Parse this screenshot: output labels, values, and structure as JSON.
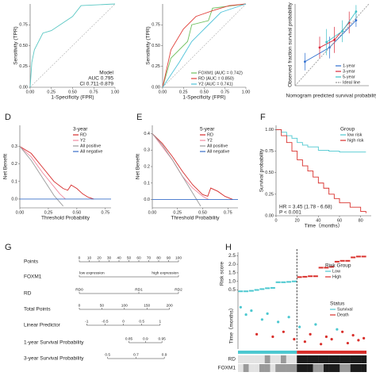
{
  "chart_data": [
    {
      "type": "line",
      "xlabel": "1-Specificity (FPR)",
      "ylabel": "Sensitivity (TPR)",
      "xlim": [
        0,
        1
      ],
      "ylim": [
        0,
        1
      ],
      "xticks": [
        {
          "value": 0,
          "label": "0.00"
        },
        0.25,
        {
          "value": 0.5,
          "label": "0.50"
        },
        0.75,
        {
          "value": 1,
          "label": "1.00"
        }
      ],
      "yticks": [
        {
          "value": 0,
          "label": "0.00"
        },
        0.25,
        {
          "value": 0.5,
          "label": "0.50"
        },
        0.75
      ],
      "diagonal": true,
      "series": [
        {
          "color": "#5cc8c4",
          "x": [
            0,
            0.02,
            0.05,
            0.15,
            0.25,
            0.5,
            0.6,
            1
          ],
          "values": [
            0,
            0.3,
            0.45,
            0.65,
            0.68,
            0.85,
            0.98,
            1
          ]
        }
      ],
      "annotations": [
        "Model",
        "AUC 0.795",
        "CI 0.711-0.879"
      ],
      "annotation_corner": "lower-right"
    },
    {
      "type": "line",
      "xlabel": "1-Specificity (FPR)",
      "ylabel": "Sensitivity (TPR)",
      "xlim": [
        0,
        1
      ],
      "ylim": [
        0,
        1
      ],
      "xticks": [
        {
          "value": 0,
          "label": "0.00"
        },
        0.25,
        {
          "value": 0.5,
          "label": "0.50"
        },
        0.75,
        {
          "value": 1,
          "label": "1.00"
        }
      ],
      "yticks": [
        {
          "value": 0,
          "label": "0.00"
        },
        0.25,
        {
          "value": 0.5,
          "label": "0.50"
        },
        0.75
      ],
      "diagonal": true,
      "legend": "lower-right",
      "series": [
        {
          "name": "FOXM1 (AUC = 0.742)",
          "color": "#6fbf5e",
          "x": [
            0,
            0.1,
            0.3,
            0.35,
            0.55,
            0.6,
            1
          ],
          "values": [
            0,
            0.35,
            0.55,
            0.75,
            0.8,
            0.95,
            1
          ]
        },
        {
          "name": "RD (AUC = 0.850)",
          "color": "#e0403a",
          "x": [
            0,
            0.1,
            0.25,
            0.4,
            0.6,
            0.8,
            1
          ],
          "values": [
            0,
            0.45,
            0.7,
            0.85,
            0.92,
            0.98,
            1
          ]
        },
        {
          "name": "Y2 (AUC = 0.741)",
          "color": "#4fc3d9",
          "x": [
            0,
            0.2,
            0.35,
            0.5,
            0.7,
            1
          ],
          "values": [
            0,
            0.3,
            0.55,
            0.7,
            0.9,
            1
          ]
        }
      ]
    },
    {
      "type": "scatter",
      "xlabel": "Nomogram predicted survival probability",
      "ylabel": "Observed fraction survival probability",
      "xlim": [
        0.2,
        0.95
      ],
      "ylim": [
        0.2,
        0.95
      ],
      "legend": "lower-right",
      "series": [
        {
          "name": "1-year",
          "color": "#2f6fd0",
          "x": [
            0.3,
            0.55,
            0.82
          ],
          "values": [
            0.42,
            0.55,
            0.8
          ],
          "errors": [
            0.08,
            0.1,
            0.06
          ]
        },
        {
          "name": "3-year",
          "color": "#d8283a",
          "x": [
            0.45,
            0.6,
            0.75
          ],
          "values": [
            0.55,
            0.62,
            0.78
          ],
          "errors": [
            0.1,
            0.12,
            0.1
          ]
        },
        {
          "name": "5-year",
          "color": "#3cc0c8",
          "x": [
            0.52,
            0.68,
            0.82
          ],
          "values": [
            0.6,
            0.7,
            0.88
          ],
          "errors": [
            0.12,
            0.1,
            0.06
          ]
        },
        {
          "name": "Ideal line",
          "color": "#999999",
          "style": "dashed",
          "x": [
            0.2,
            0.95
          ],
          "values": [
            0.2,
            0.95
          ]
        }
      ]
    },
    {
      "type": "line",
      "label": "D",
      "xlabel": "Threshold Probability",
      "ylabel": "Net Benefit",
      "xlim": [
        0,
        0.8
      ],
      "ylim": [
        -0.05,
        0.42
      ],
      "xticks": [
        {
          "value": 0,
          "label": "0.00"
        },
        0.25,
        {
          "value": 0.5,
          "label": "0.50"
        },
        0.75
      ],
      "yticks": [
        {
          "value": 0,
          "label": "0.0"
        },
        0.1,
        0.2,
        0.3
      ],
      "legend": "upper-right",
      "legend_title": "3-year",
      "series": [
        {
          "name": "RD",
          "color": "#d62b2b",
          "x": [
            0,
            0.05,
            0.1,
            0.2,
            0.3,
            0.38,
            0.42,
            0.45,
            0.5,
            0.55,
            0.6,
            0.65
          ],
          "values": [
            0.3,
            0.28,
            0.26,
            0.18,
            0.1,
            0.06,
            0.05,
            0.08,
            0.06,
            0.03,
            0.01,
            0
          ]
        },
        {
          "name": "Y2",
          "color": "#f08aa0",
          "x": [
            0,
            0.05,
            0.1,
            0.2,
            0.3,
            0.35,
            0.4
          ],
          "values": [
            0.3,
            0.27,
            0.24,
            0.15,
            0.07,
            0.03,
            0
          ]
        },
        {
          "name": "All positive",
          "color": "#9a9a9a",
          "x": [
            0,
            0.1,
            0.2,
            0.3,
            0.38
          ],
          "values": [
            0.3,
            0.22,
            0.12,
            0.02,
            -0.04
          ]
        },
        {
          "name": "All negative",
          "color": "#3a6fc9",
          "x": [
            0,
            0.8
          ],
          "values": [
            0,
            0
          ]
        }
      ]
    },
    {
      "type": "line",
      "label": "E",
      "xlabel": "Threshold Probability",
      "ylabel": "Net Benefit",
      "xlim": [
        0,
        0.85
      ],
      "ylim": [
        -0.05,
        0.45
      ],
      "xticks": [
        {
          "value": 0,
          "label": "0.00"
        },
        0.25,
        {
          "value": 0.5,
          "label": "0.50"
        },
        0.75
      ],
      "yticks": [
        {
          "value": 0,
          "label": "0.0"
        },
        0.1,
        0.2,
        0.3,
        0.4
      ],
      "legend": "upper-right",
      "legend_title": "5-year",
      "series": [
        {
          "name": "RD",
          "color": "#d62b2b",
          "x": [
            0,
            0.05,
            0.1,
            0.2,
            0.3,
            0.4,
            0.5,
            0.55,
            0.58,
            0.65,
            0.72,
            0.8
          ],
          "values": [
            0.4,
            0.37,
            0.34,
            0.26,
            0.17,
            0.09,
            0.03,
            0.02,
            0.07,
            0.05,
            0.02,
            0
          ]
        },
        {
          "name": "Y2",
          "color": "#f08aa0",
          "x": [
            0,
            0.05,
            0.1,
            0.2,
            0.3,
            0.4,
            0.5,
            0.56
          ],
          "values": [
            0.4,
            0.36,
            0.32,
            0.24,
            0.14,
            0.07,
            0.02,
            0
          ]
        },
        {
          "name": "All positive",
          "color": "#9a9a9a",
          "x": [
            0,
            0.1,
            0.2,
            0.3,
            0.4,
            0.48
          ],
          "values": [
            0.4,
            0.33,
            0.24,
            0.14,
            0.04,
            -0.04
          ]
        },
        {
          "name": "All negative",
          "color": "#3a6fc9",
          "x": [
            0,
            0.85
          ],
          "values": [
            0,
            0
          ]
        }
      ]
    },
    {
      "type": "line",
      "label": "F",
      "step": true,
      "xlabel": "Time（months）",
      "ylabel": "Survival probability",
      "xlim": [
        0,
        90
      ],
      "ylim": [
        0,
        1.05
      ],
      "xticks": [
        0,
        20,
        40,
        60,
        80
      ],
      "yticks": [
        {
          "value": 0,
          "label": "0.00"
        },
        0.25,
        {
          "value": 0.5,
          "label": "0.50"
        },
        0.75,
        {
          "value": 1,
          "label": "1.00"
        }
      ],
      "legend": "upper-right",
      "legend_title": "Group",
      "series": [
        {
          "name": "low risk",
          "color": "#4cc8d0",
          "x": [
            0,
            5,
            10,
            15,
            20,
            25,
            30,
            40,
            50,
            60,
            70,
            85
          ],
          "values": [
            1,
            0.97,
            0.93,
            0.9,
            0.85,
            0.82,
            0.8,
            0.76,
            0.75,
            0.74,
            0.74,
            0.74
          ]
        },
        {
          "name": "high risk",
          "color": "#d9302c",
          "x": [
            0,
            5,
            10,
            15,
            20,
            25,
            30,
            35,
            40,
            45,
            50,
            55,
            60,
            70,
            80,
            85
          ],
          "values": [
            1,
            0.93,
            0.85,
            0.75,
            0.65,
            0.58,
            0.52,
            0.45,
            0.38,
            0.32,
            0.25,
            0.2,
            0.15,
            0.1,
            0.05,
            0.03
          ]
        }
      ],
      "annotations": [
        "HR = 3.45 (1.78 - 6.68)",
        "P < 0.001"
      ],
      "annotation_corner": "lower-left"
    },
    {
      "type": "nomogram",
      "label": "G",
      "rows": [
        {
          "name": "Points",
          "xlim": [
            0,
            100
          ],
          "ticks": [
            0,
            10,
            20,
            30,
            40,
            50,
            60,
            70,
            80,
            90,
            100
          ]
        },
        {
          "name": "FOXM1",
          "xlim": [
            0,
            100
          ],
          "ticks": [
            {
              "value": 0,
              "label": "low expression"
            },
            {
              "value": 100,
              "label": "high expression"
            }
          ]
        },
        {
          "name": "RD",
          "xlim": [
            0,
            100
          ],
          "ticks": [
            {
              "value": 0,
              "label": "RD0"
            },
            {
              "value": 60,
              "label": "RD1"
            },
            {
              "value": 100,
              "label": "RD2"
            }
          ]
        },
        {
          "name": "Total Points",
          "xlim": [
            0,
            220
          ],
          "ticks": [
            0,
            50,
            100,
            150,
            200
          ]
        },
        {
          "name": "Linear Predictor",
          "xlim": [
            -1.2,
            1.5
          ],
          "ticks": [
            -1,
            -0.5,
            0,
            0.5,
            1
          ]
        },
        {
          "name": "1-year Survival Probability",
          "xlim": [
            0.7,
            1
          ],
          "ticks": [
            0.85,
            0.9,
            0.95
          ]
        },
        {
          "name": "3-year Survival Probability",
          "xlim": [
            0.3,
            1
          ],
          "ticks": [
            0.5,
            0.7,
            0.9
          ]
        }
      ]
    },
    {
      "type": "risk",
      "label": "H",
      "xlim": [
        0.5,
        24.5
      ],
      "cutoff": 11.5,
      "ylabel": "Risk score",
      "ylim": [
        0.2,
        2.7
      ],
      "yticks": [
        0.5,
        {
          "value": 1,
          "label": "1.0"
        },
        1.5,
        {
          "value": 2,
          "label": "2.0"
        },
        2.5
      ],
      "legend_title": "Risk Group",
      "series": [
        {
          "name": "Low",
          "color": "#4cc8d0",
          "x": [
            1,
            2,
            3,
            4,
            5,
            6,
            7,
            8,
            9,
            10,
            11
          ],
          "values": [
            0.42,
            0.42,
            0.45,
            0.5,
            0.55,
            0.6,
            0.62,
            0.95,
            0.95,
            0.97,
            1
          ]
        },
        {
          "name": "High",
          "color": "#d9302c",
          "x": [
            12,
            13,
            14,
            15,
            16,
            17,
            18,
            19,
            20,
            21,
            22,
            23,
            24
          ],
          "values": [
            1.25,
            1.27,
            1.3,
            1.3,
            1.8,
            1.8,
            1.85,
            2.15,
            2.2,
            2.2,
            2.4,
            2.45,
            2.45
          ]
        }
      ],
      "time": {
        "ylabel": "Time（months）",
        "ylim": [
          0,
          100
        ],
        "legend_title": "Status",
        "series": [
          {
            "name": "Survival",
            "color": "#4cc8d0",
            "x": [
              1,
              2,
              3,
              5,
              6,
              8,
              10,
              12,
              15,
              19
            ],
            "values": [
              85,
              70,
              78,
              60,
              72,
              55,
              65,
              45,
              50,
              40
            ]
          },
          {
            "name": "Death",
            "color": "#d9302c",
            "x": [
              4,
              7,
              9,
              11,
              13,
              14,
              16,
              17,
              18,
              20,
              21,
              22,
              23,
              24
            ],
            "values": [
              30,
              25,
              35,
              20,
              15,
              30,
              10,
              25,
              20,
              35,
              12,
              28,
              18,
              22
            ]
          }
        ]
      },
      "heatmap": {
        "rows": [
          "RD",
          "FOXM1"
        ],
        "colors": [
          "#e3e3e3",
          "#9a9a9a",
          "#1c1c1c"
        ],
        "values": [
          [
            0,
            0,
            0,
            0,
            0,
            1,
            0,
            0,
            1,
            0,
            0,
            2,
            2,
            2,
            2,
            2,
            2,
            2,
            2,
            2,
            2,
            2,
            2,
            2
          ],
          [
            0,
            1,
            0,
            0,
            1,
            1,
            0,
            1,
            1,
            1,
            1,
            2,
            2,
            2,
            1,
            1,
            2,
            2,
            2,
            1,
            1,
            2,
            2,
            2
          ]
        ]
      }
    }
  ]
}
